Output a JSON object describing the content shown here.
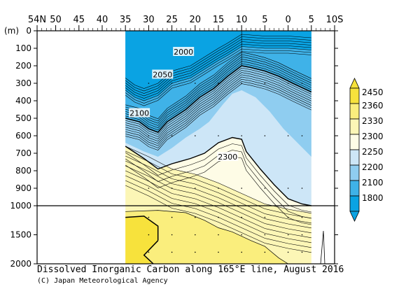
{
  "chart_data": {
    "type": "heatmap",
    "title": "Dissolved Inorganic Carbon along 165°E line, August 2016",
    "credit": "(C) Japan Meteorological Agency",
    "x_tick_labels": [
      "54N",
      "50",
      "45",
      "40",
      "35",
      "30",
      "25",
      "20",
      "15",
      "10",
      "5",
      "0",
      "5",
      "10S"
    ],
    "x_latitudes": [
      54,
      50,
      45,
      40,
      35,
      30,
      25,
      20,
      15,
      10,
      5,
      0,
      -5,
      -10
    ],
    "y_axis_unit": "(m)",
    "y_tick_labels": [
      "0",
      "100",
      "200",
      "300",
      "400",
      "500",
      "600",
      "700",
      "800",
      "900",
      "1000",
      "1500",
      "2000"
    ],
    "y_depths": [
      0,
      100,
      200,
      300,
      400,
      500,
      600,
      700,
      800,
      900,
      1000,
      1500,
      2000
    ],
    "x_range": [
      54,
      -10
    ],
    "y_range": [
      0,
      2000
    ],
    "data_extent_latitude": [
      35,
      -5
    ],
    "contour_labels": [
      {
        "text": "2000",
        "lat": 22.5,
        "depth": 120
      },
      {
        "text": "2050",
        "lat": 27,
        "depth": 250
      },
      {
        "text": "2100",
        "lat": 32,
        "depth": 470
      },
      {
        "text": "2300",
        "lat": 13,
        "depth": 720
      }
    ],
    "colorbar": {
      "labels": [
        "2450",
        "2360",
        "2330",
        "2300",
        "2250",
        "2200",
        "2100",
        "1800"
      ],
      "colors": [
        "#f7e23c",
        "#faee7d",
        "#fcf6b6",
        "#fefce6",
        "#cde6f7",
        "#8fcdf0",
        "#3fb2e8",
        "#0aa3e3"
      ]
    }
  }
}
